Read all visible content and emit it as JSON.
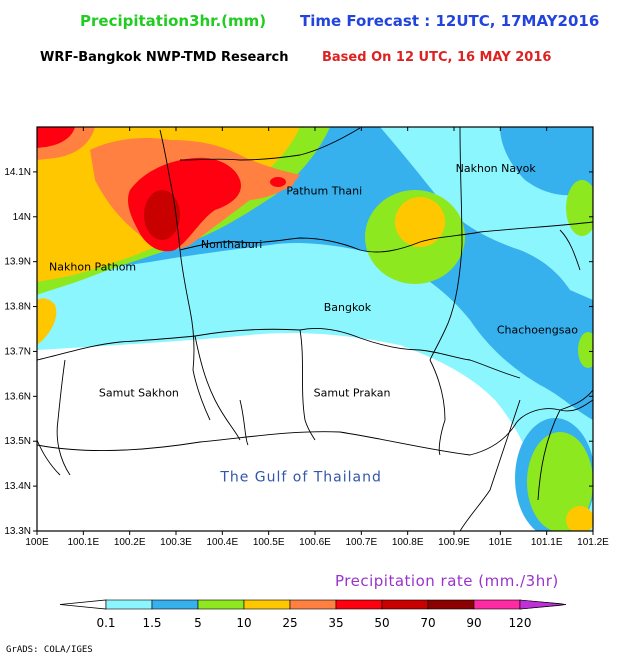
{
  "header": {
    "title": "Precipitation3hr.(mm)",
    "forecast": "Time Forecast : 12UTC, 17MAY2016",
    "model": "WRF-Bangkok NWP-TMD Research",
    "based": "Based On 12 UTC, 16 MAY 2016"
  },
  "colors": {
    "title": "#22cc22",
    "forecast": "#2244dd",
    "based": "#dd2222",
    "legend_title": "#9933cc",
    "gulf_label": "#3355aa",
    "bins": [
      "#8cf6ff",
      "#37b0ee",
      "#8ee820",
      "#ffc700",
      "#ff8040",
      "#ff0010",
      "#c80000",
      "#8c0000",
      "#ff2aa4",
      "#c030d8"
    ]
  },
  "map": {
    "lon_ticks": [
      "100E",
      "100.1E",
      "100.2E",
      "100.3E",
      "100.4E",
      "100.5E",
      "100.6E",
      "100.7E",
      "100.8E",
      "100.9E",
      "101E",
      "101.1E",
      "101.2E"
    ],
    "lat_ticks": [
      "14.1N",
      "14N",
      "13.9N",
      "13.8N",
      "13.7N",
      "13.6N",
      "13.5N",
      "13.4N",
      "13.3N"
    ],
    "lon_range": [
      100.0,
      101.2
    ],
    "lat_range": [
      13.3,
      14.2
    ],
    "places": [
      {
        "name": "Nakhon Nayok",
        "lon": 100.99,
        "lat": 14.1
      },
      {
        "name": "Pathum Thani",
        "lon": 100.62,
        "lat": 14.05
      },
      {
        "name": "Nonthaburi",
        "lon": 100.42,
        "lat": 13.93
      },
      {
        "name": "Nakhon Pathom",
        "lon": 100.12,
        "lat": 13.88
      },
      {
        "name": "Bangkok",
        "lon": 100.67,
        "lat": 13.79
      },
      {
        "name": "Chachoengsao",
        "lon": 101.08,
        "lat": 13.74
      },
      {
        "name": "Samut Sakhon",
        "lon": 100.22,
        "lat": 13.6
      },
      {
        "name": "Samut Prakan",
        "lon": 100.68,
        "lat": 13.6
      }
    ],
    "gulf_label": "The Gulf of Thailand",
    "gulf_position": {
      "lon": 100.57,
      "lat": 13.41
    }
  },
  "legend": {
    "title": "Precipitation rate (mm./3hr)",
    "labels": [
      "0.1",
      "1.5",
      "5",
      "10",
      "25",
      "35",
      "50",
      "70",
      "90",
      "120"
    ]
  },
  "credit": "GrADS: COLA/IGES"
}
